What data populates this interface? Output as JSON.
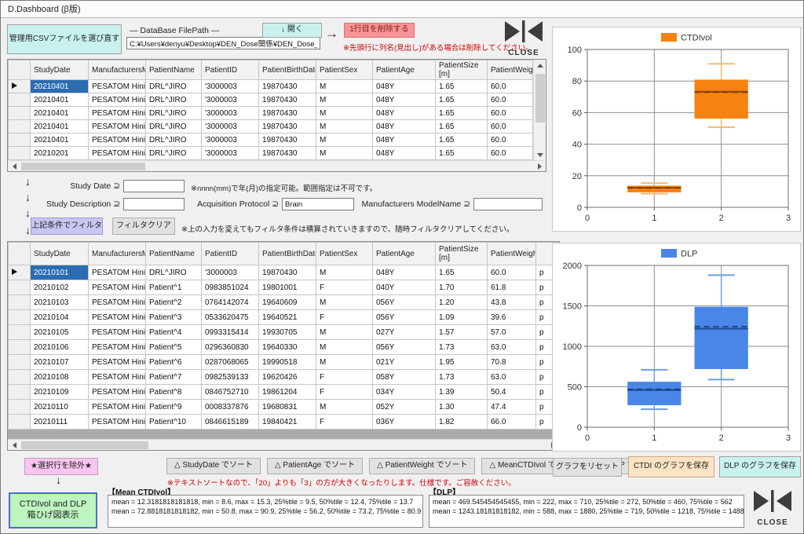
{
  "window": {
    "title": "D.Dashboard (β版)"
  },
  "toolbar": {
    "choose_csv_button": "管理用CSVファイルを選び直す",
    "filepath_label": "— DataBase FilePath —",
    "filepath_value": "C:¥Users¥denyu¥Desktop¥DEN_Dose関係¥DEN_Dose_1.4.2¥Databas",
    "open_button": "↓ 開く",
    "flow_arrow": "→",
    "delete_first_row_button": "1行目を削除する",
    "delete_note": "※先頭行に列名(見出し)がある場合は削除してください。",
    "close_label": "CLOSE"
  },
  "grid": {
    "columns": [
      "StudyDate",
      "ManufacturersMoc",
      "PatientName",
      "PatientID",
      "PatientBirthDate",
      "PatientSex",
      "PatientAge",
      "PatientSize\n[m]",
      "PatientWeight"
    ]
  },
  "grid1": {
    "selected_row": 0,
    "rows": [
      [
        "20210401",
        "PESATOM Hiniti...",
        "DRL^JIRO",
        "'3000003",
        "19870430",
        "M",
        "048Y",
        "1.65",
        "60.0"
      ],
      [
        "20210401",
        "PESATOM Hiniti...",
        "DRL^JIRO",
        "'3000003",
        "19870430",
        "M",
        "048Y",
        "1.65",
        "60.0"
      ],
      [
        "20210401",
        "PESATOM Hiniti...",
        "DRL^JIRO",
        "'3000003",
        "19870430",
        "M",
        "048Y",
        "1.65",
        "60.0"
      ],
      [
        "20210401",
        "PESATOM Hiniti...",
        "DRL^JIRO",
        "'3000003",
        "19870430",
        "M",
        "048Y",
        "1.65",
        "60.0"
      ],
      [
        "20210401",
        "PESATOM Hiniti...",
        "DRL^JIRO",
        "'3000003",
        "19870430",
        "M",
        "048Y",
        "1.65",
        "60.0"
      ],
      [
        "20210201",
        "PESATOM Hiniti...",
        "DRL^JIRO",
        "'3000003",
        "19870430",
        "M",
        "048Y",
        "1.65",
        "60.0"
      ]
    ]
  },
  "filter": {
    "arrow": "↓",
    "study_date_label": "Study Date ⊇",
    "study_date_value": "",
    "study_date_note": "※nnnn(mm)で年(月)の指定可能。範囲指定は不可です。",
    "study_description_label": "Study Description ⊇",
    "study_description_value": "",
    "acquisition_protocol_label": "Acquisition Protocol ⊇",
    "acquisition_protocol_value": "Brain",
    "manufacturers_modelname_label": "Manufacturers ModelName ⊇",
    "manufacturers_modelname_value": "",
    "apply_filter_button": "上記条件でフィルタ",
    "clear_filter_button": "フィルタクリア",
    "filter_note": "※上の入力を変えてもフィルタ条件は積算されていきますので、随時フィルタクリアしてください。"
  },
  "grid2": {
    "selected_row": 0,
    "rows": [
      [
        "20210101",
        "PESATOM Hiniti...",
        "DRL^JIRO",
        "'3000003",
        "19870430",
        "M",
        "048Y",
        "1.65",
        "60.0",
        "p"
      ],
      [
        "20210102",
        "PESATOM Hiniti...",
        "Patient^1",
        "0983851024",
        "19801001",
        "F",
        "040Y",
        "1.70",
        "61.8",
        "p"
      ],
      [
        "20210103",
        "PESATOM Hiniti...",
        "Patient^2",
        "0764142074",
        "19640609",
        "M",
        "056Y",
        "1.20",
        "43.8",
        "p"
      ],
      [
        "20210104",
        "PESATOM Hiniti...",
        "Patient^3",
        "0533620475",
        "19640521",
        "F",
        "056Y",
        "1.09",
        "39.6",
        "p"
      ],
      [
        "20210105",
        "PESATOM Hiniti...",
        "Patient^4",
        "0993315414",
        "19930705",
        "M",
        "027Y",
        "1.57",
        "57.0",
        "p"
      ],
      [
        "20210106",
        "PESATOM Hiniti...",
        "Patient^5",
        "0296360830",
        "19640330",
        "M",
        "056Y",
        "1.73",
        "63.0",
        "p"
      ],
      [
        "20210107",
        "PESATOM Hiniti...",
        "Patient^6",
        "0287068065",
        "19990518",
        "M",
        "021Y",
        "1.95",
        "70.8",
        "p"
      ],
      [
        "20210108",
        "PESATOM Hiniti...",
        "Patient^7",
        "0982539133",
        "19620426",
        "F",
        "058Y",
        "1.73",
        "63.0",
        "p"
      ],
      [
        "20210109",
        "PESATOM Hiniti...",
        "Patient^8",
        "0846752710",
        "19861204",
        "F",
        "034Y",
        "1.39",
        "50.4",
        "p"
      ],
      [
        "20210110",
        "PESATOM Hiniti...",
        "Patient^9",
        "0008337876",
        "19680831",
        "M",
        "052Y",
        "1.30",
        "47.4",
        "p"
      ],
      [
        "20210111",
        "PESATOM Hiniti...",
        "Patient^10",
        "0846615189",
        "19840421",
        "F",
        "036Y",
        "1.82",
        "66.0",
        "p"
      ]
    ]
  },
  "actions": {
    "exclude_button": "★選択行を除外★",
    "down_arrow": "↓",
    "sort_buttons": [
      "△ StudyDate でソート",
      "△ PatientAge でソート",
      "△ PatientWeight でソート",
      "△ MeanCTDIvol でソート",
      "△ DLP でソート"
    ],
    "sort_note": "※テキストソートなので、「20」よりも「3」の方が大きくなったりします。仕様です。ご容赦ください。",
    "reset_graph_button": "グラフをリセット",
    "save_ctdi_button": "CTDI のグラフを保存",
    "save_dlp_button": "DLP のグラフを保存",
    "boxplot_button_line1": "CTDIvol and DLP",
    "boxplot_button_line2": "箱ひげ図表示",
    "close_label": "CLOSE"
  },
  "stats": {
    "mean_ctdivol": {
      "label": "【Mean CTDIvol】",
      "lines": [
        "mean = 12.3181818181818, min = 8.6, max = 15.3, 25%tile = 9.5, 50%tile = 12.4, 75%tile = 13.7",
        "mean = 72.8818181818182, min = 50.8, max = 90.9, 25%tile = 56.2, 50%tile = 73.2, 75%tile = 80.9"
      ]
    },
    "dlp": {
      "label": "【DLP】",
      "lines": [
        "mean = 469.545454545455, min = 222, max = 710, 25%tile = 272, 50%tile = 460, 75%tile = 562",
        "mean = 1243.18181818182, min = 588, max = 1880, 25%tile = 719, 50%tile = 1218, 75%tile = 1488"
      ]
    }
  },
  "chart_data": [
    {
      "type": "box",
      "legend": "CTDIvol",
      "legend_position": "top",
      "color": "#F5830F",
      "whisker_color": "#F8B871",
      "median_color": "#9C4A00",
      "mean_color": "#713600",
      "grid": true,
      "xlim": [
        0,
        3
      ],
      "ylim": [
        0,
        100
      ],
      "xticks": [
        0,
        1,
        2,
        3
      ],
      "yticks": [
        0,
        20,
        40,
        60,
        80,
        100
      ],
      "boxes": [
        {
          "x": 1,
          "whisker_low": 8.6,
          "q1": 9.5,
          "median": 12.4,
          "q3": 13.7,
          "whisker_high": 15.3,
          "mean": 12.3181818181818
        },
        {
          "x": 2,
          "whisker_low": 50.8,
          "q1": 56.2,
          "median": 73.2,
          "q3": 80.9,
          "whisker_high": 90.9,
          "mean": 72.8818181818182
        }
      ]
    },
    {
      "type": "box",
      "legend": "DLP",
      "legend_position": "top",
      "color": "#4A86E8",
      "whisker_color": "#6D9EEB",
      "median_color": "#1F4E96",
      "mean_color": "#163B70",
      "grid": true,
      "xlim": [
        0,
        3
      ],
      "ylim": [
        0,
        2000
      ],
      "xticks": [
        0,
        1,
        2,
        3
      ],
      "yticks": [
        0,
        500,
        1000,
        1500,
        2000
      ],
      "boxes": [
        {
          "x": 1,
          "whisker_low": 222,
          "q1": 272,
          "median": 460,
          "q3": 562,
          "whisker_high": 710,
          "mean": 469.545454545455
        },
        {
          "x": 2,
          "whisker_low": 588,
          "q1": 719,
          "median": 1218,
          "q3": 1488,
          "whisker_high": 1880,
          "mean": 1243.18181818182
        }
      ]
    }
  ]
}
